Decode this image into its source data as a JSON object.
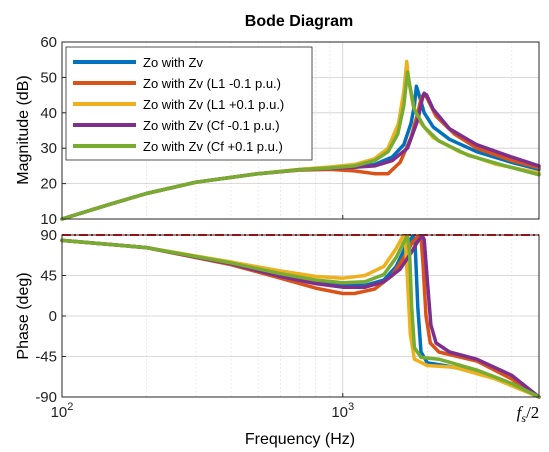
{
  "chart_data": {
    "type": "line",
    "title": "Bode Diagram",
    "xlabel": "Frequency  (Hz)",
    "xscale": "log",
    "x_ticks": [
      {
        "value": 100,
        "label": "10",
        "exp": "2"
      },
      {
        "value": 1000,
        "label": "10",
        "exp": "3"
      }
    ],
    "x_end_label": {
      "prefix": "f",
      "sub": "s",
      "suffix": "/2"
    },
    "xlim": [
      100,
      5000
    ],
    "legend": {
      "placement": "top-left"
    },
    "grid": true,
    "colors": {
      "blue": "#0072BD",
      "orange": "#D95319",
      "yellow": "#EDB120",
      "purple": "#7E2F8E",
      "green": "#77AC30",
      "ref_line": "#ff0000"
    },
    "subplots": [
      {
        "name": "magnitude",
        "ylabel": "Magnitude (dB)",
        "ylim": [
          10,
          60
        ],
        "yticks": [
          10,
          20,
          30,
          40,
          50,
          60
        ],
        "series": [
          {
            "name": "Zo with Zv",
            "color": "#0072BD",
            "points": [
              [
                100,
                10
              ],
              [
                150,
                14.3
              ],
              [
                200,
                17.2
              ],
              [
                300,
                20.4
              ],
              [
                500,
                22.8
              ],
              [
                700,
                23.9
              ],
              [
                900,
                24.3
              ],
              [
                1100,
                24.6
              ],
              [
                1300,
                25.4
              ],
              [
                1500,
                27.5
              ],
              [
                1650,
                31
              ],
              [
                1750,
                37
              ],
              [
                1800,
                42
              ],
              [
                1830,
                47.5
              ],
              [
                1870,
                45
              ],
              [
                1950,
                40
              ],
              [
                2100,
                36
              ],
              [
                2400,
                32.5
              ],
              [
                3000,
                29
              ],
              [
                4000,
                26
              ],
              [
                5000,
                24
              ]
            ]
          },
          {
            "name": "Zo with Zv (L1 -0.1 p.u.)",
            "color": "#D95319",
            "points": [
              [
                100,
                10
              ],
              [
                150,
                14.3
              ],
              [
                200,
                17.2
              ],
              [
                300,
                20.4
              ],
              [
                500,
                22.8
              ],
              [
                700,
                23.8
              ],
              [
                900,
                24
              ],
              [
                1100,
                23.6
              ],
              [
                1300,
                22.8
              ],
              [
                1450,
                22.8
              ],
              [
                1600,
                26
              ],
              [
                1750,
                33
              ],
              [
                1850,
                40
              ],
              [
                1900,
                44
              ],
              [
                1950,
                45.5
              ],
              [
                2000,
                44
              ],
              [
                2150,
                39
              ],
              [
                2500,
                34
              ],
              [
                3000,
                30
              ],
              [
                4000,
                26.5
              ],
              [
                5000,
                24.5
              ]
            ]
          },
          {
            "name": "Zo with Zv (L1 +0.1 p.u.)",
            "color": "#EDB120",
            "points": [
              [
                100,
                10
              ],
              [
                150,
                14.3
              ],
              [
                200,
                17.2
              ],
              [
                300,
                20.4
              ],
              [
                500,
                22.8
              ],
              [
                700,
                24
              ],
              [
                900,
                24.7
              ],
              [
                1100,
                25.4
              ],
              [
                1300,
                27
              ],
              [
                1450,
                30
              ],
              [
                1580,
                37
              ],
              [
                1650,
                46
              ],
              [
                1690,
                54.5
              ],
              [
                1720,
                49
              ],
              [
                1780,
                42
              ],
              [
                1900,
                37
              ],
              [
                2100,
                33
              ],
              [
                2600,
                29
              ],
              [
                3500,
                25.5
              ],
              [
                5000,
                23
              ]
            ]
          },
          {
            "name": "Zo with Zv (Cf -0.1 p.u.)",
            "color": "#7E2F8E",
            "points": [
              [
                100,
                10
              ],
              [
                150,
                14.3
              ],
              [
                200,
                17.2
              ],
              [
                300,
                20.4
              ],
              [
                500,
                22.8
              ],
              [
                700,
                23.9
              ],
              [
                900,
                24.3
              ],
              [
                1100,
                24.6
              ],
              [
                1300,
                25
              ],
              [
                1500,
                26.5
              ],
              [
                1700,
                30
              ],
              [
                1850,
                38
              ],
              [
                1920,
                44
              ],
              [
                1950,
                45.5
              ],
              [
                1990,
                45
              ],
              [
                2100,
                41
              ],
              [
                2400,
                35.5
              ],
              [
                3000,
                31
              ],
              [
                4000,
                27.5
              ],
              [
                5000,
                25
              ]
            ]
          },
          {
            "name": "Zo with Zv (Cf +0.1 p.u.)",
            "color": "#77AC30",
            "points": [
              [
                100,
                10
              ],
              [
                150,
                14.3
              ],
              [
                200,
                17.2
              ],
              [
                300,
                20.4
              ],
              [
                500,
                22.8
              ],
              [
                700,
                23.9
              ],
              [
                900,
                24.4
              ],
              [
                1100,
                25
              ],
              [
                1300,
                26.5
              ],
              [
                1450,
                29
              ],
              [
                1570,
                34
              ],
              [
                1650,
                42
              ],
              [
                1700,
                51.5
              ],
              [
                1740,
                47
              ],
              [
                1800,
                41
              ],
              [
                1950,
                36
              ],
              [
                2200,
                32
              ],
              [
                2800,
                28
              ],
              [
                3800,
                25
              ],
              [
                5000,
                22.5
              ]
            ]
          }
        ]
      },
      {
        "name": "phase",
        "ylabel": "Phase (deg)",
        "ylim": [
          -90,
          90
        ],
        "yticks": [
          -90,
          -45,
          0,
          45,
          90
        ],
        "reference_line": {
          "y": 90,
          "style": "dash-dot",
          "color": "#ff0000"
        },
        "series": [
          {
            "name": "Zo with Zv",
            "color": "#0072BD",
            "points": [
              [
                100,
                84
              ],
              [
                200,
                76
              ],
              [
                400,
                58
              ],
              [
                600,
                45
              ],
              [
                800,
                38
              ],
              [
                1000,
                34
              ],
              [
                1200,
                34
              ],
              [
                1400,
                40
              ],
              [
                1550,
                55
              ],
              [
                1680,
                78
              ],
              [
                1780,
                89
              ],
              [
                1810,
                80
              ],
              [
                1850,
                10
              ],
              [
                1900,
                -40
              ],
              [
                2000,
                -52
              ],
              [
                2300,
                -55
              ],
              [
                3000,
                -62
              ],
              [
                4000,
                -76
              ],
              [
                5000,
                -90
              ]
            ]
          },
          {
            "name": "Zo with Zv (L1 -0.1 p.u.)",
            "color": "#D95319",
            "points": [
              [
                100,
                84
              ],
              [
                200,
                76
              ],
              [
                400,
                57
              ],
              [
                600,
                42
              ],
              [
                800,
                31
              ],
              [
                1000,
                25
              ],
              [
                1100,
                25
              ],
              [
                1300,
                30
              ],
              [
                1500,
                45
              ],
              [
                1650,
                65
              ],
              [
                1780,
                83
              ],
              [
                1860,
                89
              ],
              [
                1900,
                88
              ],
              [
                1930,
                60
              ],
              [
                1980,
                0
              ],
              [
                2050,
                -30
              ],
              [
                2200,
                -40
              ],
              [
                3000,
                -50
              ],
              [
                4000,
                -70
              ],
              [
                5000,
                -90
              ]
            ]
          },
          {
            "name": "Zo with Zv (L1 +0.1 p.u.)",
            "color": "#EDB120",
            "points": [
              [
                100,
                84
              ],
              [
                200,
                76
              ],
              [
                400,
                60
              ],
              [
                600,
                50
              ],
              [
                800,
                44
              ],
              [
                1000,
                42
              ],
              [
                1200,
                45
              ],
              [
                1400,
                55
              ],
              [
                1550,
                75
              ],
              [
                1640,
                89
              ],
              [
                1670,
                85
              ],
              [
                1700,
                40
              ],
              [
                1740,
                -20
              ],
              [
                1800,
                -48
              ],
              [
                2000,
                -55
              ],
              [
                2500,
                -57
              ],
              [
                3500,
                -70
              ],
              [
                5000,
                -90
              ]
            ]
          },
          {
            "name": "Zo with Zv (Cf -0.1 p.u.)",
            "color": "#7E2F8E",
            "points": [
              [
                100,
                84
              ],
              [
                200,
                76
              ],
              [
                400,
                58
              ],
              [
                600,
                44
              ],
              [
                800,
                36
              ],
              [
                1000,
                32
              ],
              [
                1200,
                32
              ],
              [
                1400,
                38
              ],
              [
                1600,
                52
              ],
              [
                1750,
                70
              ],
              [
                1860,
                84
              ],
              [
                1920,
                89
              ],
              [
                1950,
                85
              ],
              [
                2000,
                40
              ],
              [
                2060,
                -10
              ],
              [
                2150,
                -30
              ],
              [
                2400,
                -40
              ],
              [
                3000,
                -48
              ],
              [
                4000,
                -66
              ],
              [
                5000,
                -90
              ]
            ]
          },
          {
            "name": "Zo with Zv (Cf +0.1 p.u.)",
            "color": "#77AC30",
            "points": [
              [
                100,
                84
              ],
              [
                200,
                76
              ],
              [
                400,
                59
              ],
              [
                600,
                47
              ],
              [
                800,
                40
              ],
              [
                1000,
                37
              ],
              [
                1200,
                38
              ],
              [
                1400,
                46
              ],
              [
                1550,
                65
              ],
              [
                1650,
                82
              ],
              [
                1700,
                89
              ],
              [
                1730,
                70
              ],
              [
                1760,
                10
              ],
              [
                1800,
                -35
              ],
              [
                1900,
                -46
              ],
              [
                2200,
                -48
              ],
              [
                3000,
                -60
              ],
              [
                4000,
                -75
              ],
              [
                5000,
                -90
              ]
            ]
          }
        ]
      }
    ]
  }
}
